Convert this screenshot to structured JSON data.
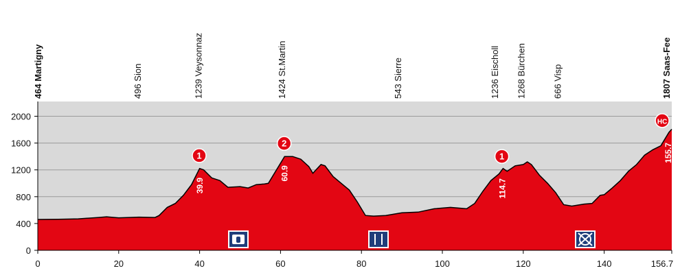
{
  "chart_data": {
    "type": "area",
    "x": [
      0,
      5,
      10,
      15,
      17,
      20,
      25,
      29,
      30,
      32,
      34,
      36,
      38,
      40,
      41,
      43,
      45,
      47,
      50,
      52,
      54,
      56,
      57,
      59,
      61,
      63,
      65,
      67,
      68,
      70,
      71,
      73,
      75,
      77,
      79,
      81,
      83,
      86,
      90,
      94,
      98,
      102,
      106,
      108,
      110,
      112,
      114,
      115,
      116,
      118,
      120,
      121,
      122,
      124,
      126,
      128,
      130,
      132,
      135,
      137,
      139,
      140,
      142,
      144,
      146,
      148,
      150,
      152,
      154,
      156,
      156.7
    ],
    "y": [
      460,
      462,
      470,
      490,
      500,
      485,
      495,
      490,
      520,
      640,
      700,
      820,
      980,
      1220,
      1200,
      1080,
      1040,
      940,
      950,
      930,
      980,
      990,
      1000,
      1200,
      1400,
      1400,
      1360,
      1250,
      1150,
      1280,
      1260,
      1100,
      1000,
      900,
      720,
      520,
      510,
      520,
      560,
      570,
      620,
      640,
      620,
      700,
      880,
      1040,
      1140,
      1220,
      1180,
      1260,
      1280,
      1320,
      1280,
      1120,
      1000,
      860,
      680,
      660,
      690,
      700,
      820,
      830,
      930,
      1040,
      1180,
      1280,
      1420,
      1500,
      1560,
      1760,
      1807
    ],
    "color": "#e30613",
    "xlim": [
      0,
      156.7
    ],
    "ylim": [
      0,
      2220
    ],
    "xticks": [
      0,
      20,
      40,
      60,
      80,
      100,
      120,
      140,
      156.7
    ],
    "yticks": [
      0,
      400,
      800,
      1200,
      1600,
      2000
    ],
    "grid": true,
    "locations": [
      {
        "label": "464 Martigny",
        "x": 0
      },
      {
        "label": "496 Sion",
        "x": 24.6
      },
      {
        "label": "1239 Veysonnaz",
        "x": 39.6
      },
      {
        "label": "1424 St.Martin",
        "x": 60.3
      },
      {
        "label": "543 Sierre",
        "x": 89
      },
      {
        "label": "1236 Eischoll",
        "x": 112.9
      },
      {
        "label": "1268 Bürchen",
        "x": 119.4
      },
      {
        "label": "666 Visp",
        "x": 128.4
      },
      {
        "label": "1807 Saas-Fee",
        "x": 156.7
      }
    ],
    "climbs": [
      {
        "category": "1",
        "x": 39.9
      },
      {
        "category": "2",
        "x": 60.9
      },
      {
        "category": "1",
        "x": 114.7
      },
      {
        "category": "HC",
        "x": 155.7
      }
    ]
  }
}
